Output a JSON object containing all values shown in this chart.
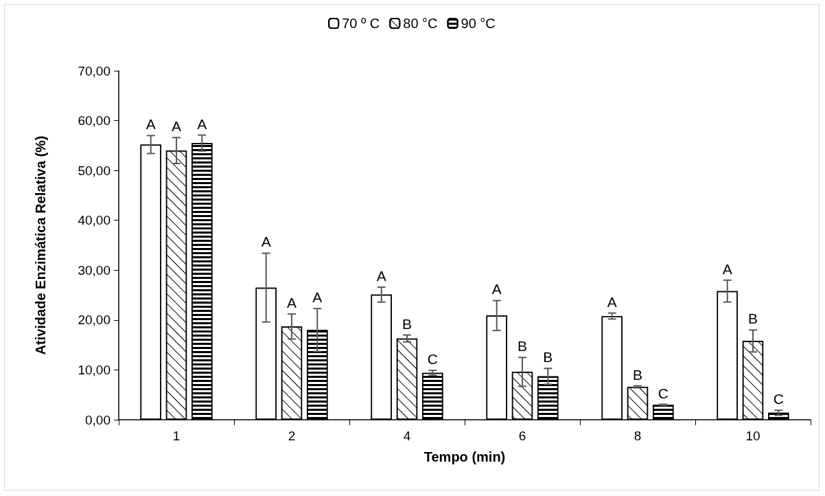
{
  "chart_data": {
    "type": "bar",
    "xlabel": "Tempo (min)",
    "ylabel": "Atividade Enzimática Relativa (%)",
    "categories": [
      "1",
      "2",
      "4",
      "6",
      "8",
      "10"
    ],
    "series": [
      {
        "name": "70 º C",
        "color": "#ffffff",
        "values": [
          55.2,
          26.5,
          25.1,
          20.9,
          20.8,
          25.8
        ],
        "errors": [
          1.8,
          6.9,
          1.5,
          3.0,
          0.6,
          2.2
        ],
        "value_labels": [
          "A",
          "A",
          "A",
          "A",
          "A",
          "A"
        ]
      },
      {
        "name": "80 °C",
        "color": "#ffffff",
        "values": [
          54.0,
          18.7,
          16.3,
          9.6,
          6.6,
          15.8
        ],
        "errors": [
          2.6,
          2.5,
          0.7,
          2.9,
          0.2,
          2.2
        ],
        "value_labels": [
          "A",
          "A",
          "B",
          "B",
          "B",
          "B"
        ]
      },
      {
        "name": "90 °C",
        "color": "#ffffff",
        "values": [
          55.5,
          18.0,
          9.4,
          8.7,
          3.0,
          1.4
        ],
        "errors": [
          1.6,
          4.3,
          0.5,
          1.6,
          0.1,
          0.5
        ],
        "value_labels": [
          "A",
          "A",
          "C",
          "B",
          "C",
          "C"
        ]
      }
    ],
    "ylim": [
      0,
      70
    ],
    "yticks": [
      {
        "value": 0,
        "label": "0,00"
      },
      {
        "value": 10,
        "label": "10,00"
      },
      {
        "value": 20,
        "label": "20,00"
      },
      {
        "value": 30,
        "label": "30,00"
      },
      {
        "value": 40,
        "label": "40,00"
      },
      {
        "value": 50,
        "label": "50,00"
      },
      {
        "value": 60,
        "label": "60,00"
      },
      {
        "value": 70,
        "label": "70,00"
      }
    ],
    "grid": false,
    "legend": "top"
  }
}
